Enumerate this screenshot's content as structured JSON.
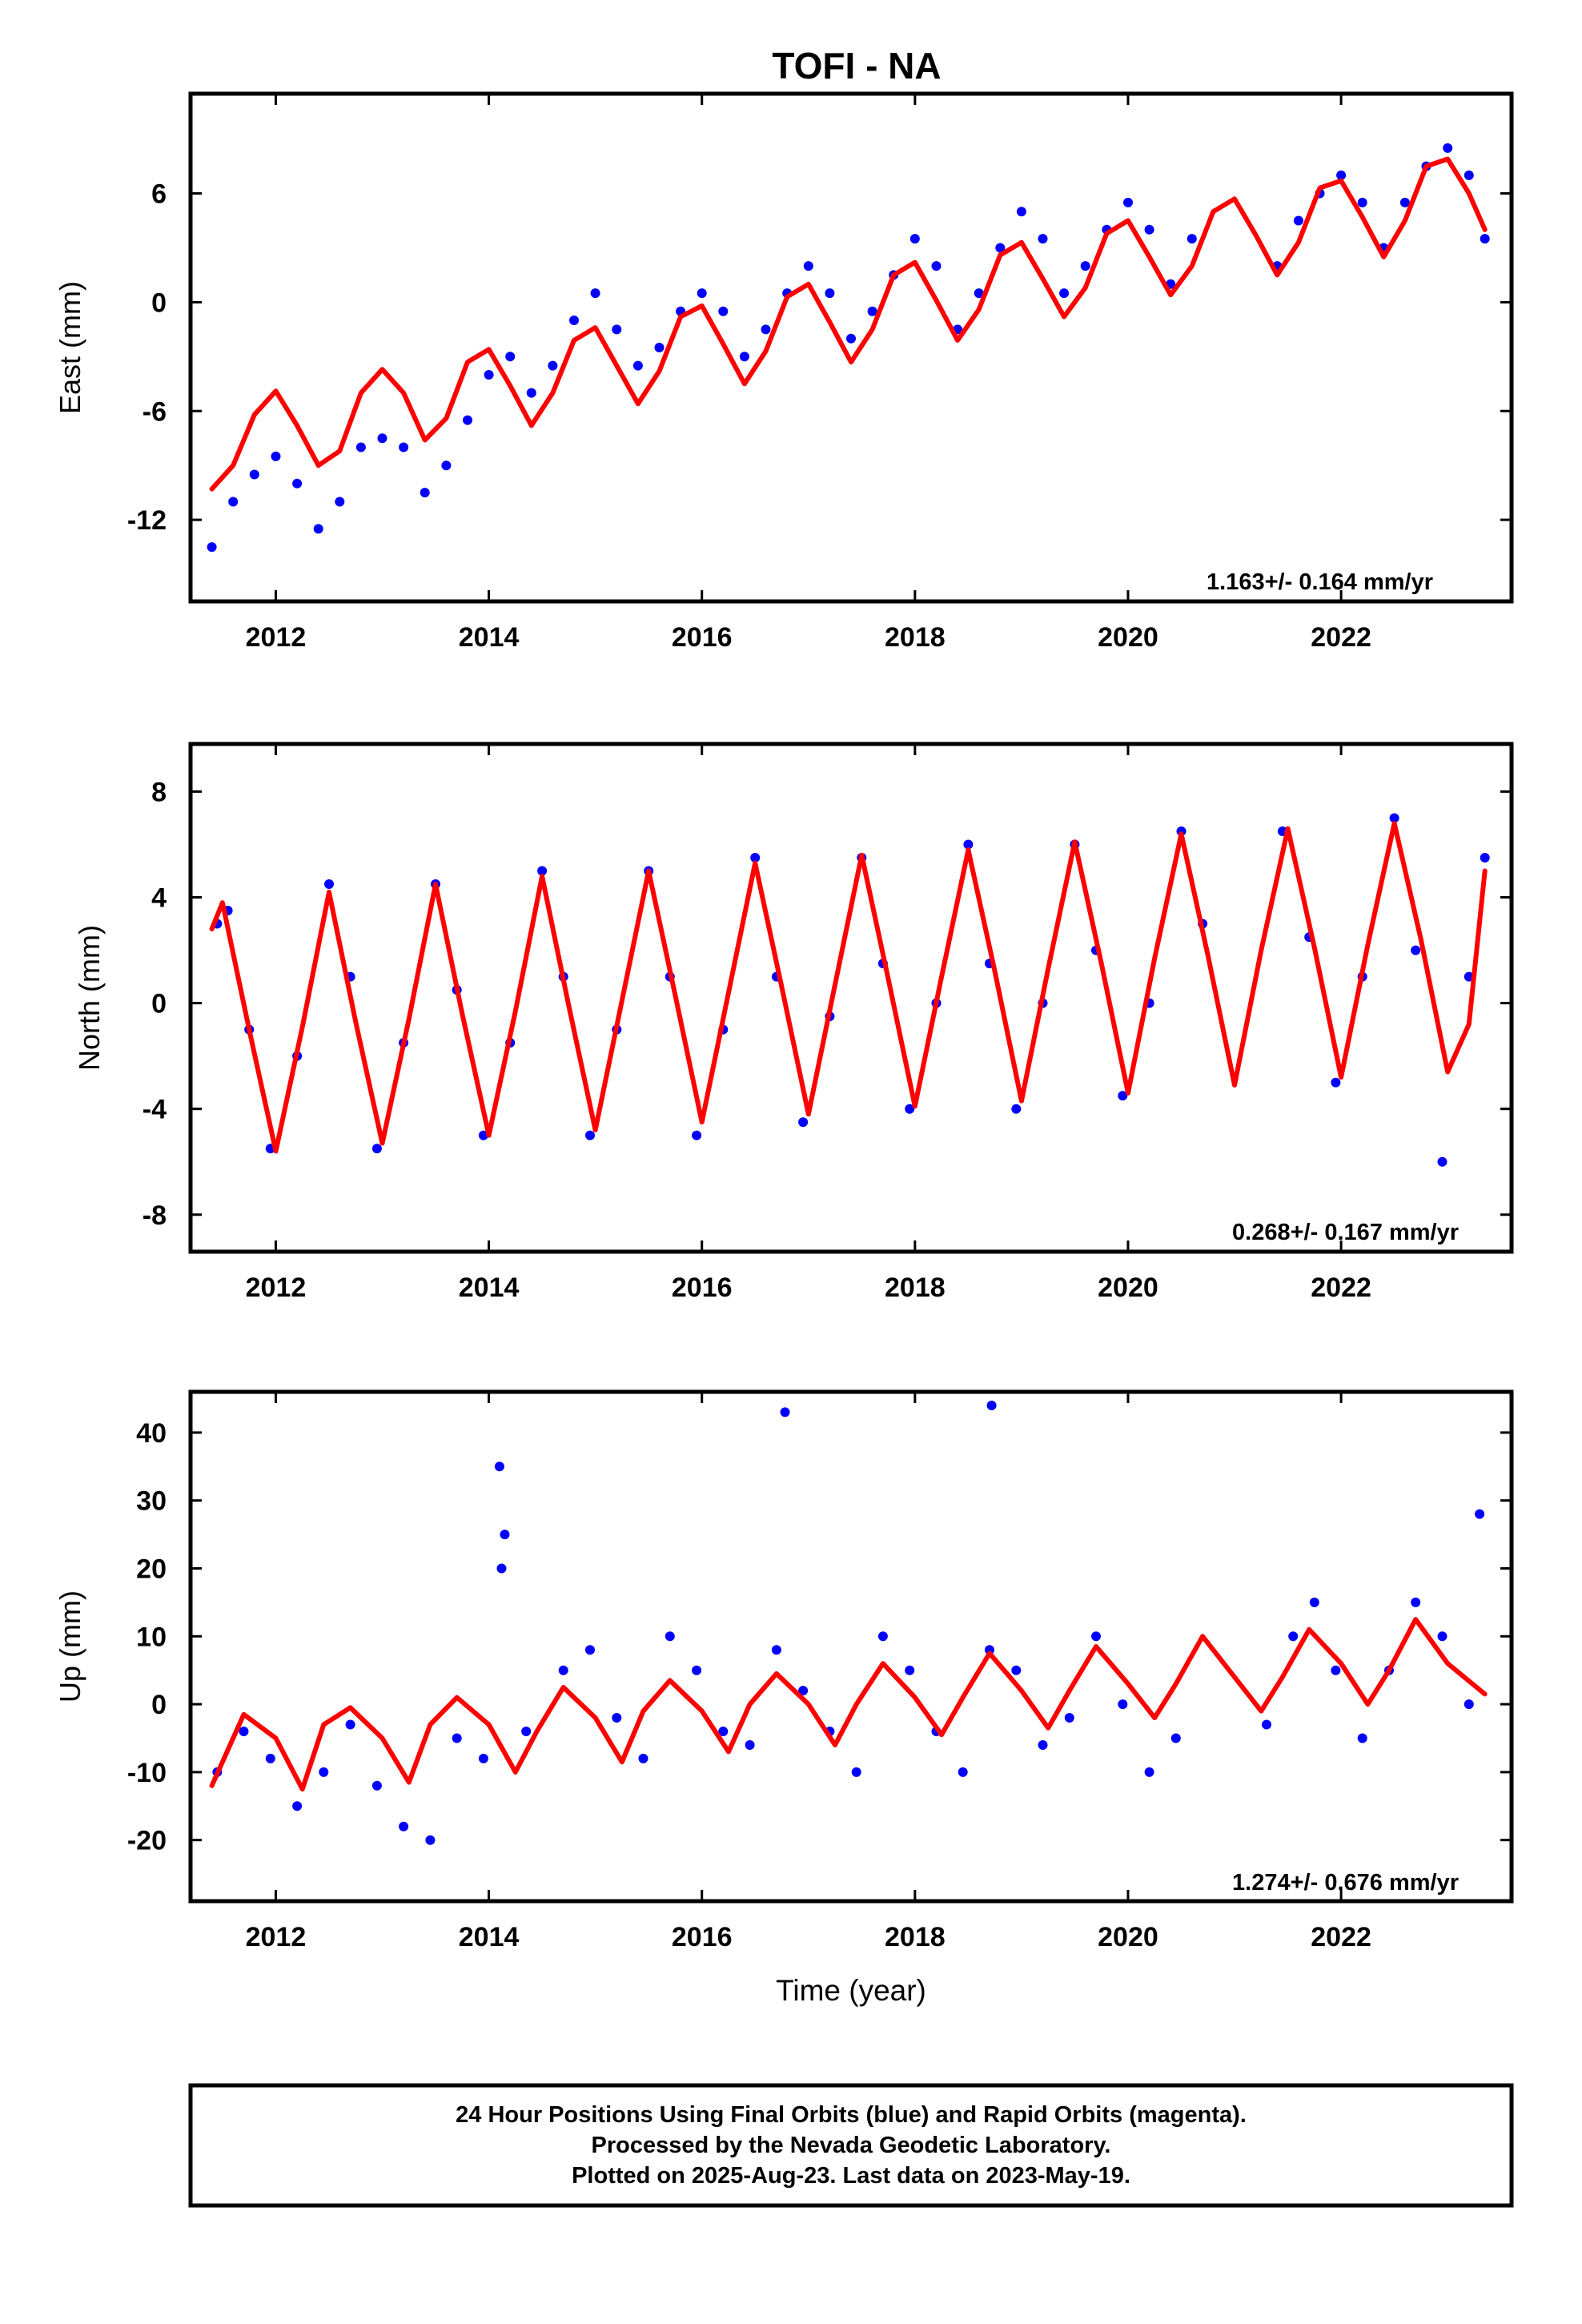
{
  "title": "TOFI - NA",
  "colors": {
    "final_orbits": "#0000ff",
    "model_fit": "#ff0000",
    "frame": "#000000",
    "background": "#ffffff"
  },
  "chart_data": [
    {
      "type": "scatter",
      "ylabel": "East (mm)",
      "xlabel": "",
      "xlim": [
        2011.2,
        2023.6
      ],
      "ylim": [
        -16.5,
        11.5
      ],
      "x_ticks": [
        "2012",
        "2014",
        "2016",
        "2018",
        "2020",
        "2022"
      ],
      "y_ticks": [
        "6",
        "0",
        "-6",
        "-12"
      ],
      "rate_label": "1.163+/- 0.164 mm/yr",
      "grid": false,
      "series": [
        {
          "kind": "points",
          "color": "#0000ff",
          "note": "daily positions, sampled",
          "x": [
            2011.4,
            2011.6,
            2011.8,
            2012.0,
            2012.2,
            2012.4,
            2012.6,
            2012.8,
            2013.0,
            2013.2,
            2013.4,
            2013.6,
            2013.8,
            2014.0,
            2014.2,
            2014.4,
            2014.6,
            2014.8,
            2015.0,
            2015.2,
            2015.4,
            2015.6,
            2015.8,
            2016.0,
            2016.2,
            2016.4,
            2016.6,
            2016.8,
            2017.0,
            2017.2,
            2017.4,
            2017.6,
            2017.8,
            2018.0,
            2018.2,
            2018.4,
            2018.6,
            2018.8,
            2019.0,
            2019.2,
            2019.4,
            2019.6,
            2019.8,
            2020.0,
            2020.2,
            2020.4,
            2020.6,
            2021.4,
            2021.6,
            2021.8,
            2022.0,
            2022.2,
            2022.4,
            2022.6,
            2022.8,
            2023.0,
            2023.2,
            2023.35
          ],
          "y": [
            -13.5,
            -11.0,
            -9.5,
            -8.5,
            -10.0,
            -12.5,
            -11.0,
            -8.0,
            -7.5,
            -8.0,
            -10.5,
            -9.0,
            -6.5,
            -4.0,
            -3.0,
            -5.0,
            -3.5,
            -1.0,
            0.5,
            -1.5,
            -3.5,
            -2.5,
            -0.5,
            0.5,
            -0.5,
            -3.0,
            -1.5,
            0.5,
            2.0,
            0.5,
            -2.0,
            -0.5,
            1.5,
            3.5,
            2.0,
            -1.5,
            0.5,
            3.0,
            5.0,
            3.5,
            0.5,
            2.0,
            4.0,
            5.5,
            4.0,
            1.0,
            3.5,
            2.0,
            4.5,
            6.0,
            7.0,
            5.5,
            3.0,
            5.5,
            7.5,
            8.5,
            7.0,
            3.5
          ]
        },
        {
          "kind": "fit",
          "color": "#ff0000",
          "x": [
            2011.4,
            2011.6,
            2011.8,
            2012.0,
            2012.2,
            2012.4,
            2012.6,
            2012.8,
            2013.0,
            2013.2,
            2013.4,
            2013.6,
            2013.8,
            2014.0,
            2014.2,
            2014.4,
            2014.6,
            2014.8,
            2015.0,
            2015.2,
            2015.4,
            2015.6,
            2015.8,
            2016.0,
            2016.2,
            2016.4,
            2016.6,
            2016.8,
            2017.0,
            2017.2,
            2017.4,
            2017.6,
            2017.8,
            2018.0,
            2018.2,
            2018.4,
            2018.6,
            2018.8,
            2019.0,
            2019.2,
            2019.4,
            2019.6,
            2019.8,
            2020.0,
            2020.2,
            2020.4,
            2020.6,
            2020.8,
            2021.0,
            2021.2,
            2021.4,
            2021.6,
            2021.8,
            2022.0,
            2022.2,
            2022.4,
            2022.6,
            2022.8,
            2023.0,
            2023.2,
            2023.35
          ],
          "y": [
            -10.3,
            -9.0,
            -6.2,
            -4.9,
            -6.8,
            -9.0,
            -8.2,
            -5.0,
            -3.7,
            -5.0,
            -7.6,
            -6.4,
            -3.3,
            -2.6,
            -4.6,
            -6.8,
            -5.0,
            -2.1,
            -1.4,
            -3.5,
            -5.6,
            -3.8,
            -0.8,
            -0.2,
            -2.3,
            -4.5,
            -2.7,
            0.3,
            1.0,
            -1.1,
            -3.3,
            -1.5,
            1.5,
            2.2,
            0.1,
            -2.1,
            -0.4,
            2.6,
            3.3,
            1.3,
            -0.8,
            0.8,
            3.8,
            4.5,
            2.5,
            0.4,
            2.0,
            5.0,
            5.7,
            3.7,
            1.5,
            3.3,
            6.3,
            6.7,
            4.7,
            2.5,
            4.5,
            7.5,
            7.9,
            6.0,
            4.0
          ]
        }
      ]
    },
    {
      "type": "scatter",
      "ylabel": "North (mm)",
      "xlabel": "",
      "xlim": [
        2011.2,
        2023.6
      ],
      "ylim": [
        -9.4,
        9.8
      ],
      "x_ticks": [
        "2012",
        "2014",
        "2016",
        "2018",
        "2020",
        "2022"
      ],
      "y_ticks": [
        "8",
        "4",
        "0",
        "-4",
        "-8"
      ],
      "rate_label": "0.268+/- 0.167 mm/yr",
      "grid": false,
      "series": [
        {
          "kind": "points",
          "color": "#0000ff",
          "note": "daily positions, sampled",
          "x": [
            2011.45,
            2011.55,
            2011.75,
            2011.95,
            2012.2,
            2012.5,
            2012.7,
            2012.95,
            2013.2,
            2013.5,
            2013.7,
            2013.95,
            2014.2,
            2014.5,
            2014.7,
            2014.95,
            2015.2,
            2015.5,
            2015.7,
            2015.95,
            2016.2,
            2016.5,
            2016.7,
            2016.95,
            2017.2,
            2017.5,
            2017.7,
            2017.95,
            2018.2,
            2018.5,
            2018.7,
            2018.95,
            2019.2,
            2019.5,
            2019.7,
            2019.95,
            2020.2,
            2020.5,
            2020.7,
            2021.45,
            2021.7,
            2021.95,
            2022.2,
            2022.5,
            2022.7,
            2022.95,
            2023.2,
            2023.35
          ],
          "y": [
            3.0,
            3.5,
            -1.0,
            -5.5,
            -2.0,
            4.5,
            1.0,
            -5.5,
            -1.5,
            4.5,
            0.5,
            -5.0,
            -1.5,
            5.0,
            1.0,
            -5.0,
            -1.0,
            5.0,
            1.0,
            -5.0,
            -1.0,
            5.5,
            1.0,
            -4.5,
            -0.5,
            5.5,
            1.5,
            -4.0,
            0.0,
            6.0,
            1.5,
            -4.0,
            0.0,
            6.0,
            2.0,
            -3.5,
            0.0,
            6.5,
            3.0,
            6.5,
            2.5,
            -3.0,
            1.0,
            7.0,
            2.0,
            -6.0,
            1.0,
            5.5
          ]
        },
        {
          "kind": "fit",
          "color": "#ff0000",
          "x": [
            2011.4,
            2011.5,
            2011.75,
            2012.0,
            2012.25,
            2012.5,
            2012.75,
            2013.0,
            2013.25,
            2013.5,
            2013.75,
            2014.0,
            2014.25,
            2014.5,
            2014.75,
            2015.0,
            2015.25,
            2015.5,
            2015.75,
            2016.0,
            2016.25,
            2016.5,
            2016.75,
            2017.0,
            2017.25,
            2017.5,
            2017.75,
            2018.0,
            2018.25,
            2018.5,
            2018.75,
            2019.0,
            2019.25,
            2019.5,
            2019.75,
            2020.0,
            2020.25,
            2020.5,
            2020.75,
            2021.0,
            2021.25,
            2021.5,
            2021.75,
            2022.0,
            2022.25,
            2022.5,
            2022.75,
            2023.0,
            2023.2,
            2023.35
          ],
          "y": [
            2.8,
            3.8,
            -1.0,
            -5.6,
            -0.9,
            4.2,
            -0.7,
            -5.3,
            -0.6,
            4.5,
            -0.4,
            -5.0,
            -0.3,
            4.8,
            -0.1,
            -4.8,
            0.1,
            5.0,
            0.3,
            -4.5,
            0.4,
            5.3,
            0.6,
            -4.2,
            0.7,
            5.6,
            0.9,
            -3.9,
            1.0,
            5.8,
            1.2,
            -3.7,
            1.3,
            6.1,
            1.5,
            -3.4,
            1.7,
            6.4,
            1.8,
            -3.1,
            2.0,
            6.6,
            2.1,
            -2.8,
            2.2,
            6.8,
            2.4,
            -2.6,
            -0.8,
            5.0
          ]
        }
      ]
    },
    {
      "type": "scatter",
      "ylabel": "Up (mm)",
      "xlabel": "Time (year)",
      "xlim": [
        2011.2,
        2023.6
      ],
      "ylim": [
        -29,
        46
      ],
      "x_ticks": [
        "2012",
        "2014",
        "2016",
        "2018",
        "2020",
        "2022"
      ],
      "y_ticks": [
        "40",
        "30",
        "20",
        "10",
        "0",
        "-10",
        "-20"
      ],
      "rate_label": "1.274+/- 0.676 mm/yr",
      "grid": false,
      "series": [
        {
          "kind": "points",
          "color": "#0000ff",
          "note": "daily positions, sampled",
          "x": [
            2011.45,
            2011.7,
            2011.95,
            2012.2,
            2012.45,
            2012.7,
            2012.95,
            2013.2,
            2013.45,
            2013.7,
            2013.95,
            2014.1,
            2014.12,
            2014.15,
            2014.35,
            2014.7,
            2014.95,
            2015.2,
            2015.45,
            2015.7,
            2015.95,
            2016.2,
            2016.45,
            2016.7,
            2016.78,
            2016.95,
            2017.2,
            2017.45,
            2017.7,
            2017.95,
            2018.2,
            2018.45,
            2018.7,
            2018.72,
            2018.95,
            2019.2,
            2019.45,
            2019.7,
            2019.95,
            2020.2,
            2020.45,
            2021.3,
            2021.55,
            2021.75,
            2021.95,
            2022.2,
            2022.45,
            2022.7,
            2022.95,
            2023.2,
            2023.3
          ],
          "y": [
            -10,
            -4,
            -8,
            -15,
            -10,
            -3,
            -12,
            -18,
            -20,
            -5,
            -8,
            35,
            20,
            25,
            -4,
            5,
            8,
            -2,
            -8,
            10,
            5,
            -4,
            -6,
            8,
            43,
            2,
            -4,
            -10,
            10,
            5,
            -4,
            -10,
            8,
            44,
            5,
            -6,
            -2,
            10,
            0,
            -10,
            -5,
            -3,
            10,
            15,
            5,
            -5,
            5,
            15,
            10,
            0,
            28
          ]
        },
        {
          "kind": "fit",
          "color": "#ff0000",
          "x": [
            2011.4,
            2011.7,
            2012.0,
            2012.25,
            2012.45,
            2012.7,
            2013.0,
            2013.25,
            2013.45,
            2013.7,
            2014.0,
            2014.25,
            2014.45,
            2014.7,
            2015.0,
            2015.25,
            2015.45,
            2015.7,
            2016.0,
            2016.25,
            2016.45,
            2016.7,
            2017.0,
            2017.25,
            2017.45,
            2017.7,
            2018.0,
            2018.25,
            2018.45,
            2018.7,
            2019.0,
            2019.25,
            2019.45,
            2019.7,
            2020.0,
            2020.25,
            2020.45,
            2020.7,
            2021.0,
            2021.25,
            2021.45,
            2021.7,
            2022.0,
            2022.25,
            2022.45,
            2022.7,
            2023.0,
            2023.35
          ],
          "y": [
            -12,
            -1.5,
            -5,
            -12.5,
            -3,
            -0.5,
            -5,
            -11.5,
            -3,
            1,
            -3,
            -10,
            -4,
            2.5,
            -2,
            -8.5,
            -1,
            3.5,
            -1,
            -7,
            0,
            4.5,
            0,
            -6,
            0,
            6,
            1,
            -4.5,
            1,
            7.5,
            2,
            -3.5,
            2,
            8.5,
            3,
            -2,
            3,
            10,
            4,
            -1,
            4,
            11,
            6,
            0,
            5,
            12.5,
            6,
            1.5
          ]
        }
      ]
    }
  ],
  "footer": {
    "line1": "24 Hour Positions Using Final Orbits (blue) and Rapid Orbits (magenta).",
    "line2": "Processed by the Nevada Geodetic Laboratory.",
    "line3": "Plotted on 2025-Aug-23. Last data on 2023-May-19."
  }
}
